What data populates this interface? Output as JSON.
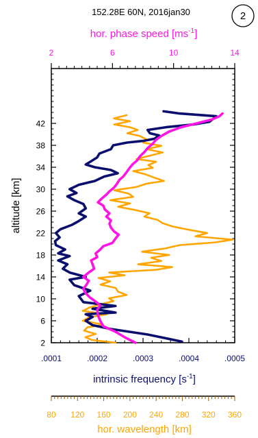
{
  "chart_data": {
    "type": "line",
    "title": "152.28E 60N, 2016jan30",
    "badge": "2",
    "ylabel": "altitude [km]",
    "ylim": [
      2,
      42
    ],
    "ylim_plot": [
      2,
      52
    ],
    "yticks": [
      "2",
      "6",
      "10",
      "14",
      "18",
      "22",
      "26",
      "30",
      "34",
      "38",
      "42"
    ],
    "colors": {
      "frequency": "#0a0f6e",
      "phase": "#ff14e6",
      "wavelength": "#ffa500",
      "axis": "#000000"
    },
    "axes": {
      "frequency": {
        "label_main": "intrinsic frequency [s",
        "label_exp": "-1",
        "label_close": "]",
        "min": 0.0001,
        "max": 0.0005,
        "ticks": [
          ".0001",
          ".0002",
          ".0003",
          ".0004",
          ".0005"
        ],
        "tick_values": [
          0.0001,
          0.0002,
          0.0003,
          0.0004,
          0.0005
        ]
      },
      "phase": {
        "label_main": "hor. phase speed [ms",
        "label_exp": "-1",
        "label_close": "]",
        "min": 2,
        "max": 14,
        "ticks": [
          "2",
          "6",
          "10",
          "14"
        ],
        "tick_values": [
          2,
          6,
          10,
          14
        ]
      },
      "wavelength": {
        "label": "hor. wavelength [km]",
        "min": 80,
        "max": 360,
        "ticks": [
          "80",
          "120",
          "160",
          "200",
          "240",
          "280",
          "320",
          "360"
        ],
        "tick_values": [
          80,
          120,
          160,
          200,
          240,
          280,
          320,
          360
        ]
      }
    },
    "series": [
      {
        "axis": "frequency",
        "points": [
          [
            0.000385,
            2.2
          ],
          [
            0.00031,
            3.5
          ],
          [
            0.00023,
            4.5
          ],
          [
            0.00019,
            5.2
          ],
          [
            0.000175,
            6
          ],
          [
            0.00019,
            6.7
          ],
          [
            0.000175,
            7.2
          ],
          [
            0.00024,
            7.5
          ],
          [
            0.00019,
            8.2
          ],
          [
            0.00024,
            8.7
          ],
          [
            0.00017,
            9.4
          ],
          [
            0.00016,
            10.5
          ],
          [
            0.000185,
            11.5
          ],
          [
            0.00015,
            12.5
          ],
          [
            0.00014,
            13.5
          ],
          [
            0.000175,
            14
          ],
          [
            0.00014,
            14.8
          ],
          [
            0.000125,
            15.5
          ],
          [
            0.000135,
            16.3
          ],
          [
            0.000115,
            17
          ],
          [
            0.00014,
            17.8
          ],
          [
            0.000115,
            18.3
          ],
          [
            0.00013,
            19
          ],
          [
            0.00011,
            19.8
          ],
          [
            0.000108,
            20.5
          ],
          [
            0.000118,
            21.2
          ],
          [
            0.00011,
            22
          ],
          [
            0.00012,
            22.7
          ],
          [
            0.000145,
            23.5
          ],
          [
            0.00016,
            24.2
          ],
          [
            0.000175,
            25
          ],
          [
            0.00016,
            25.6
          ],
          [
            0.000175,
            26.5
          ],
          [
            0.00017,
            27.3
          ],
          [
            0.00015,
            28
          ],
          [
            0.000135,
            28.7
          ],
          [
            0.000155,
            29.3
          ],
          [
            0.00014,
            30
          ],
          [
            0.00016,
            30.8
          ],
          [
            0.000195,
            31.5
          ],
          [
            0.000215,
            32.3
          ],
          [
            0.000245,
            32.9
          ],
          [
            0.00023,
            33.5
          ],
          [
            0.000195,
            34
          ],
          [
            0.000175,
            34.5
          ],
          [
            0.000185,
            35
          ],
          [
            0.0002,
            35.8
          ],
          [
            0.000205,
            36.5
          ],
          [
            0.00023,
            37.3
          ],
          [
            0.000235,
            38
          ],
          [
            0.000265,
            38.5
          ],
          [
            0.0003,
            38.8
          ],
          [
            0.000325,
            39.2
          ],
          [
            0.000335,
            39.8
          ],
          [
            0.000315,
            40.2
          ],
          [
            0.00031,
            40.8
          ],
          [
            0.00035,
            41.3
          ],
          [
            0.00041,
            41.8
          ],
          [
            0.000445,
            42.3
          ],
          [
            0.00046,
            43.3
          ],
          [
            0.00038,
            43.8
          ],
          [
            0.000345,
            44.2
          ]
        ]
      },
      {
        "axis": "phase",
        "points": [
          [
            7.5,
            2
          ],
          [
            6.8,
            3
          ],
          [
            6.2,
            4
          ],
          [
            5.4,
            5
          ],
          [
            5.2,
            6
          ],
          [
            5.05,
            7
          ],
          [
            5.0,
            8
          ],
          [
            5.2,
            8.8
          ],
          [
            4.9,
            9.5
          ],
          [
            4.55,
            10.2
          ],
          [
            4.25,
            11
          ],
          [
            4.1,
            11.8
          ],
          [
            4.3,
            12.6
          ],
          [
            4.45,
            13.3
          ],
          [
            4.1,
            14
          ],
          [
            4.45,
            14.8
          ],
          [
            4.8,
            15.5
          ],
          [
            4.7,
            16.3
          ],
          [
            4.6,
            17
          ],
          [
            5.0,
            17.6
          ],
          [
            4.9,
            18.3
          ],
          [
            5.2,
            19
          ],
          [
            5.4,
            19.6
          ],
          [
            6.0,
            20.2
          ],
          [
            6.2,
            21
          ],
          [
            6.4,
            21.7
          ],
          [
            6.1,
            22.3
          ],
          [
            5.9,
            23
          ],
          [
            5.8,
            23.7
          ],
          [
            5.9,
            24.3
          ],
          [
            5.6,
            25
          ],
          [
            5.8,
            25.6
          ],
          [
            5.5,
            26.3
          ],
          [
            5.4,
            27
          ],
          [
            5.05,
            27.6
          ],
          [
            5.3,
            28.3
          ],
          [
            5.6,
            29
          ],
          [
            5.8,
            29.6
          ],
          [
            6.1,
            30.3
          ],
          [
            6.3,
            31
          ],
          [
            6.45,
            31.7
          ],
          [
            6.7,
            32.3
          ],
          [
            6.9,
            33
          ],
          [
            7.1,
            33.8
          ],
          [
            7.3,
            34.5
          ],
          [
            7.6,
            35.2
          ],
          [
            7.8,
            36
          ],
          [
            8.1,
            36.8
          ],
          [
            8.3,
            37.5
          ],
          [
            8.6,
            38.2
          ],
          [
            8.85,
            39
          ],
          [
            9.2,
            39.7
          ],
          [
            9.7,
            40.5
          ],
          [
            10.5,
            41.3
          ],
          [
            11.5,
            42
          ],
          [
            12.5,
            42.7
          ],
          [
            13.0,
            43.3
          ],
          [
            13.2,
            43.8
          ]
        ]
      },
      {
        "axis": "wavelength",
        "points": [
          [
            178,
            2
          ],
          [
            142,
            2.5
          ],
          [
            132,
            3
          ],
          [
            148,
            3.6
          ],
          [
            130,
            4.2
          ],
          [
            135,
            4.8
          ],
          [
            160,
            5.3
          ],
          [
            128,
            6
          ],
          [
            137,
            6.6
          ],
          [
            165,
            7.2
          ],
          [
            128,
            7.8
          ],
          [
            138,
            8.4
          ],
          [
            155,
            9
          ],
          [
            175,
            9.6
          ],
          [
            168,
            10.1
          ],
          [
            195,
            10.7
          ],
          [
            182,
            11.3
          ],
          [
            178,
            12
          ],
          [
            155,
            12.6
          ],
          [
            170,
            13.2
          ],
          [
            152,
            13.8
          ],
          [
            192,
            14.3
          ],
          [
            168,
            14.8
          ],
          [
            240,
            15.3
          ],
          [
            265,
            15.8
          ],
          [
            212,
            16.3
          ],
          [
            248,
            16.9
          ],
          [
            232,
            17.5
          ],
          [
            260,
            18
          ],
          [
            218,
            18.6
          ],
          [
            254,
            19.2
          ],
          [
            276,
            19.8
          ],
          [
            330,
            20.3
          ],
          [
            357,
            20.8
          ],
          [
            300,
            21.4
          ],
          [
            318,
            22
          ],
          [
            290,
            22.6
          ],
          [
            265,
            23.2
          ],
          [
            250,
            23.8
          ],
          [
            242,
            24.4
          ],
          [
            222,
            25
          ],
          [
            230,
            25.6
          ],
          [
            208,
            26.2
          ],
          [
            182,
            26.8
          ],
          [
            200,
            27.4
          ],
          [
            170,
            28
          ],
          [
            205,
            28.6
          ],
          [
            198,
            29.2
          ],
          [
            176,
            29.8
          ],
          [
            210,
            30.4
          ],
          [
            225,
            31
          ],
          [
            252,
            31.5
          ],
          [
            237,
            32.1
          ],
          [
            224,
            32.7
          ],
          [
            205,
            33.3
          ],
          [
            235,
            33.9
          ],
          [
            228,
            34.4
          ],
          [
            240,
            35
          ],
          [
            210,
            35.5
          ],
          [
            230,
            36.1
          ],
          [
            250,
            36.7
          ],
          [
            225,
            37.3
          ],
          [
            248,
            37.9
          ],
          [
            220,
            38.5
          ],
          [
            225,
            39.1
          ],
          [
            215,
            39.7
          ],
          [
            196,
            40.2
          ],
          [
            212,
            40.8
          ],
          [
            200,
            41.3
          ],
          [
            176,
            41.8
          ],
          [
            200,
            42.4
          ],
          [
            175,
            42.9
          ],
          [
            195,
            43.5
          ]
        ]
      }
    ],
    "grid": false,
    "legend": "none"
  }
}
